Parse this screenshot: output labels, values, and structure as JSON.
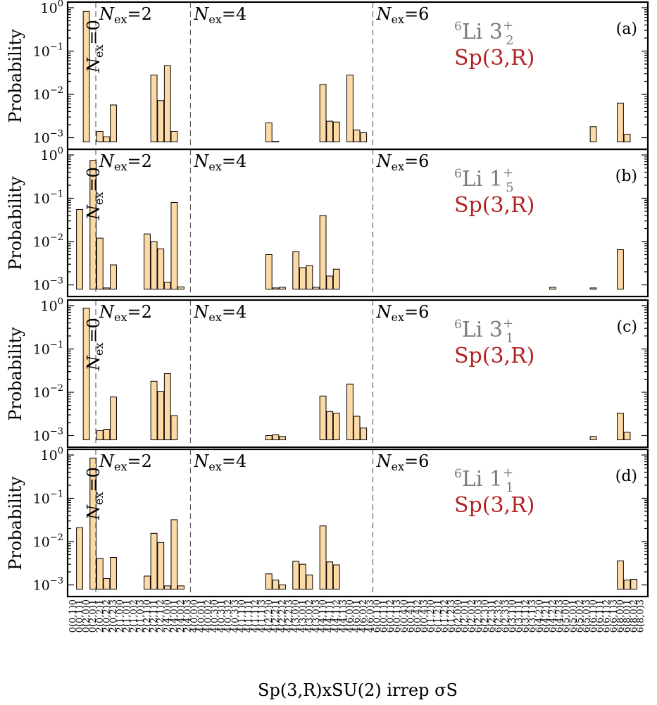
{
  "chart_data": {
    "type": "bar",
    "log_scale_y": true,
    "ylim": [
      0.0008,
      1.0
    ],
    "ylabel": "Probability",
    "xlabel": "Sp(3,R)xSU(2) irrep σS",
    "categories": [
      "0(0,1)0",
      "0(0,1)1",
      "0(2,0)0",
      "0(2,0)1",
      "2(0,2)1",
      "2(0,2)2",
      "2(0,2)3",
      "2(1,0)0",
      "2(1,0)1",
      "2(1,0)2",
      "2(1,0)3",
      "2(2,1)0",
      "2(2,1)1",
      "2(2,1)2",
      "2(4,0)0",
      "2(4,0)1",
      "2(4,0)2",
      "2(4,0)3",
      "4(0,0)0",
      "4(0,0)1",
      "4(0,0)2",
      "4(0,3)0",
      "4(0,3)1",
      "4(0,3)2",
      "4(0,3)3",
      "4(1,1)0",
      "4(1,1)1",
      "4(1,1)2",
      "4(1,1)3",
      "4(2,2)0",
      "4(2,2)1",
      "4(2,2)2",
      "4(2,2)3",
      "4(3,0)0",
      "4(3,0)1",
      "4(3,0)2",
      "4(3,0)3",
      "4(4,1)0",
      "4(4,1)1",
      "4(4,1)2",
      "4(4,1)3",
      "4(6,0)0",
      "4(6,0)1",
      "4(6,0)2",
      "4(6,0)3",
      "6(0,1)0",
      "6(0,1)1",
      "6(0,1)2",
      "6(0,1)3",
      "6(0,4)0",
      "6(0,4)1",
      "6(0,4)2",
      "6(0,4)3",
      "6(1,2)0",
      "6(1,2)1",
      "6(1,2)2",
      "6(1,2)3",
      "6(2,0)0",
      "6(2,0)1",
      "6(2,0)2",
      "6(2,0)3",
      "6(2,3)0",
      "6(2,3)1",
      "6(2,3)2",
      "6(2,3)3",
      "6(3,1)0",
      "6(3,1)1",
      "6(3,1)2",
      "6(3,1)3",
      "6(4,2)0",
      "6(4,2)1",
      "6(4,2)2",
      "6(4,2)3",
      "6(5,0)0",
      "6(5,0)1",
      "6(5,0)2",
      "6(5,0)3",
      "6(6,1)0",
      "6(6,1)1",
      "6(6,1)2",
      "6(6,1)3",
      "6(8,0)0",
      "6(8,0)1",
      "6(8,0)2",
      "6(8,0)3"
    ],
    "y_ticks": [
      {
        "base": "10",
        "exp": "0"
      },
      {
        "base": "10",
        "exp": "−1"
      },
      {
        "base": "10",
        "exp": "−2"
      },
      {
        "base": "10",
        "exp": "−3"
      }
    ],
    "sectors": [
      {
        "label_base": "N",
        "label_sub": "ex",
        "label_rest": "=0",
        "start_index": 0
      },
      {
        "label_base": "N",
        "label_sub": "ex",
        "label_rest": "=2",
        "start_index": 4
      },
      {
        "label_base": "N",
        "label_sub": "ex",
        "label_rest": "=4",
        "start_index": 18
      },
      {
        "label_base": "N",
        "label_sub": "ex",
        "label_rest": "=6",
        "start_index": 45
      }
    ],
    "panels": [
      {
        "label": "(a)",
        "nucleus_mass": "6",
        "nucleus_symbol": "Li",
        "state_j": "3",
        "state_sub": "2",
        "state_parity": "+",
        "model": "Sp(3,R)",
        "values": [
          0,
          0,
          0.82,
          0,
          0.0014,
          0.00105,
          0.0057,
          0,
          0,
          0,
          0,
          0,
          0.028,
          0.0072,
          0.046,
          0.0014,
          0,
          0,
          0,
          0,
          0,
          0,
          0,
          0,
          0,
          0,
          0,
          0,
          0,
          0.0022,
          0.00082,
          0.00072,
          0,
          0,
          0,
          0,
          0,
          0.017,
          0.0024,
          0.0023,
          0,
          0.028,
          0.0015,
          0.0013,
          0,
          0,
          0,
          0,
          0,
          0,
          0,
          0,
          0,
          0,
          0,
          0,
          0,
          0,
          0,
          0,
          0,
          0,
          0,
          0,
          0,
          0,
          0,
          0,
          0,
          0,
          0,
          0,
          0,
          0,
          0,
          0,
          0,
          0.0018,
          0,
          0,
          0,
          0.0063,
          0.0012,
          0.00078,
          0
        ]
      },
      {
        "label": "(b)",
        "nucleus_mass": "6",
        "nucleus_symbol": "Li",
        "state_j": "1",
        "state_sub": "5",
        "state_parity": "+",
        "model": "Sp(3,R)",
        "values": [
          0,
          0.055,
          0,
          0.75,
          0.012,
          0.00085,
          0.0029,
          0,
          0,
          0,
          0,
          0.015,
          0.01,
          0.0068,
          0.00115,
          0.08,
          0.0009,
          0,
          0,
          0,
          0,
          0,
          0,
          0,
          0,
          0,
          0,
          0,
          0,
          0.005,
          0.00085,
          0.00088,
          0,
          0.0058,
          0.0025,
          0.0028,
          0.00088,
          0.04,
          0.0016,
          0.0023,
          0,
          0,
          0,
          0,
          0,
          0,
          0,
          0,
          0,
          0,
          0,
          0,
          0,
          0,
          0,
          0,
          0,
          0,
          0,
          0,
          0,
          0,
          0,
          0,
          0,
          0,
          0,
          0,
          0,
          0,
          0,
          0.00088,
          0,
          0,
          0,
          0,
          0,
          0.00085,
          0,
          0,
          0,
          0.0065,
          0,
          0,
          0
        ]
      },
      {
        "label": "(c)",
        "nucleus_mass": "6",
        "nucleus_symbol": "Li",
        "state_j": "3",
        "state_sub": "1",
        "state_parity": "+",
        "model": "Sp(3,R)",
        "values": [
          0,
          0,
          0.88,
          0,
          0.0013,
          0.0014,
          0.0078,
          0,
          0,
          0,
          0,
          0,
          0.018,
          0.0105,
          0.027,
          0.0029,
          0,
          0,
          0,
          0,
          0,
          0,
          0,
          0,
          0,
          0,
          0,
          0,
          0,
          0.001,
          0.00105,
          0.00095,
          0,
          0,
          0,
          0,
          0,
          0.0082,
          0.0036,
          0.0033,
          0,
          0.0155,
          0.0028,
          0.0015,
          0,
          0,
          0,
          0,
          0,
          0,
          0,
          0,
          0,
          0,
          0,
          0,
          0,
          0,
          0,
          0,
          0,
          0,
          0,
          0,
          0,
          0,
          0,
          0,
          0,
          0,
          0,
          0,
          0,
          0,
          0,
          0,
          0,
          0.00095,
          0,
          0,
          0,
          0.0033,
          0.0012,
          0.00075,
          0
        ]
      },
      {
        "label": "(d)",
        "nucleus_mass": "6",
        "nucleus_symbol": "Li",
        "state_j": "1",
        "state_sub": "1",
        "state_parity": "+",
        "model": "Sp(3,R)",
        "values": [
          0,
          0.021,
          0,
          0.85,
          0.0041,
          0.0014,
          0.0043,
          0,
          0,
          0,
          0,
          0.0016,
          0.0155,
          0.0095,
          0.00095,
          0.032,
          0.00095,
          0,
          0,
          0,
          0,
          0,
          0,
          0,
          0,
          0,
          0,
          0,
          0,
          0.0018,
          0.0013,
          0.001,
          0,
          0.0035,
          0.003,
          0.0017,
          0,
          0.023,
          0.0034,
          0.0029,
          0,
          0,
          0,
          0,
          0,
          0,
          0,
          0,
          0,
          0,
          0,
          0,
          0,
          0,
          0,
          0,
          0,
          0,
          0,
          0,
          0,
          0,
          0,
          0,
          0,
          0,
          0,
          0,
          0,
          0,
          0,
          0,
          0,
          0,
          0,
          0,
          0,
          0,
          0,
          0,
          0,
          0.0036,
          0.0013,
          0.00135,
          0
        ]
      }
    ],
    "colors": {
      "bar_fill": "#fdd9a6",
      "nucleus_label": "#7a7a7a",
      "model_label": "#b22222"
    }
  }
}
